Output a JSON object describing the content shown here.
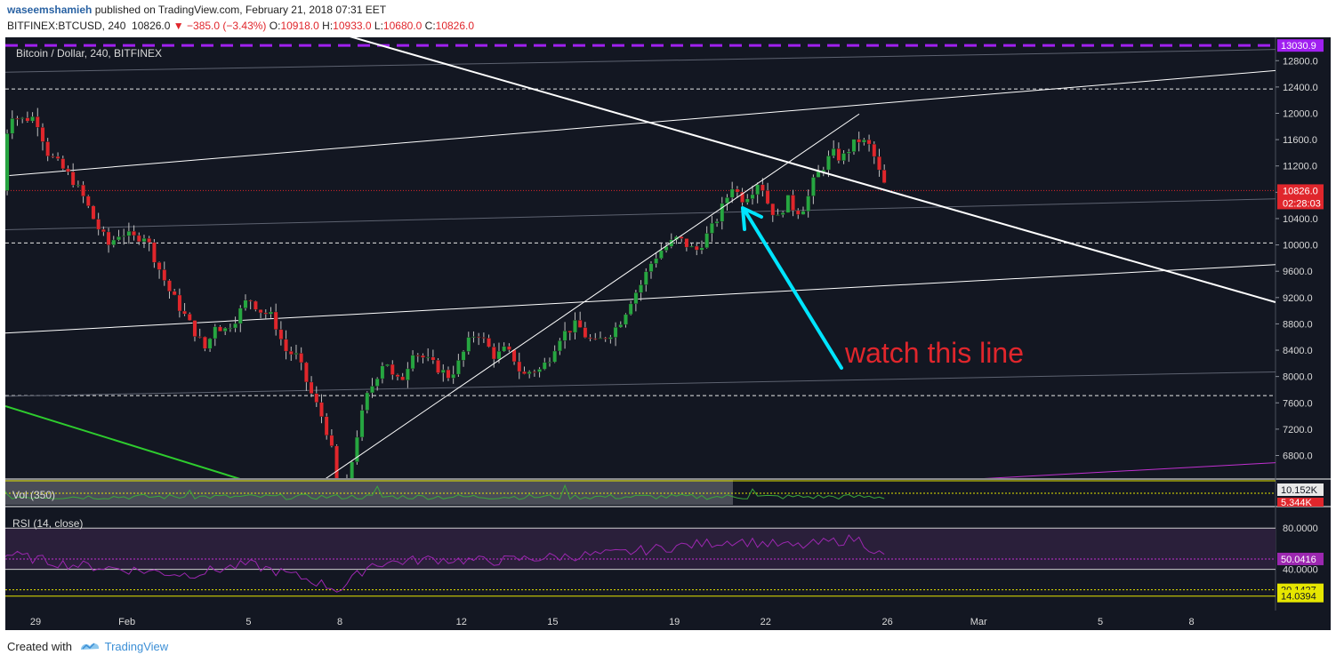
{
  "header": {
    "author": "waseemshamieh",
    "published_text": "published on TradingView.com, February 21, 2018 07:31 EET",
    "symbol": "BITFINEX:BTCUSD, 240",
    "last": "10826.0",
    "change": "−385.0 (−3.43%)",
    "o_label": "O:",
    "o_value": "10918.0",
    "h_label": "H:",
    "h_value": "10933.0",
    "l_label": "L:",
    "l_value": "10680.0",
    "c_label": "C:",
    "c_value": "10826.0"
  },
  "footer": {
    "created_with": "Created with",
    "brand": "TradingView"
  },
  "colors": {
    "background": "#131722",
    "up": "#26a641",
    "down": "#e0262c",
    "annotation": "#00e5ff",
    "annotation_text": "#e0262c",
    "purple": "#a020f0",
    "rsi": "#9c27b0"
  },
  "chart_data": {
    "type": "candlestick",
    "title": "Bitcoin / Dollar, 240, BITFINEX",
    "x_tick_labels": [
      "29",
      "Feb",
      "5",
      "8",
      "12",
      "15",
      "19",
      "22",
      "26",
      "Mar",
      "5",
      "8"
    ],
    "ylim": [
      6400,
      13200
    ],
    "y_ticks": [
      12800,
      12400,
      12000,
      11600,
      11200,
      10800,
      10400,
      10000,
      9600,
      9200,
      8800,
      8400,
      8000,
      7600,
      7200,
      6800
    ],
    "y_tick_labels": [
      "12800.0",
      "12400.0",
      "12000.0",
      "11600.0",
      "11200.0",
      "10800.0",
      "10400.0",
      "10000.0",
      "9600.0",
      "9200.0",
      "8800.0",
      "8400.0",
      "8000.0",
      "7600.0",
      "7200.0",
      "6800.0"
    ],
    "current_price_label": "10826.0",
    "countdown_label": "02:28:03",
    "purple_level_label": "13030.9",
    "purple_level": 13030.9,
    "dashed_levels": [
      12370,
      10030,
      7710
    ],
    "ohlc_approx": [
      {
        "date": "Jan 29",
        "close": 11800
      },
      {
        "date": "Feb 1",
        "close": 10200
      },
      {
        "date": "Feb 3",
        "close": 8600
      },
      {
        "date": "Feb 5",
        "close": 7600
      },
      {
        "date": "Feb 6",
        "low": 6000,
        "close": 6900
      },
      {
        "date": "Feb 8",
        "close": 8200
      },
      {
        "date": "Feb 10",
        "close": 8600
      },
      {
        "date": "Feb 12",
        "close": 8700
      },
      {
        "date": "Feb 15",
        "close": 9900
      },
      {
        "date": "Feb 17",
        "close": 11000
      },
      {
        "date": "Feb 19",
        "close": 11100
      },
      {
        "date": "Feb 20",
        "high": 11780,
        "close": 11500
      },
      {
        "date": "Feb 21",
        "close": 10826
      }
    ],
    "annotation": "watch this line",
    "volume": {
      "label": "Vol (350)",
      "value_labels": [
        "10.152K",
        "5.344K"
      ]
    },
    "rsi": {
      "label": "RSI (14, close)",
      "ylim": [
        0,
        100
      ],
      "band": [
        40,
        80
      ],
      "current": 50.0416,
      "tick_labels": [
        "80.0000",
        "40.0000"
      ],
      "value_labels": [
        "50.0416",
        "20.1427",
        "14.0394"
      ]
    }
  }
}
